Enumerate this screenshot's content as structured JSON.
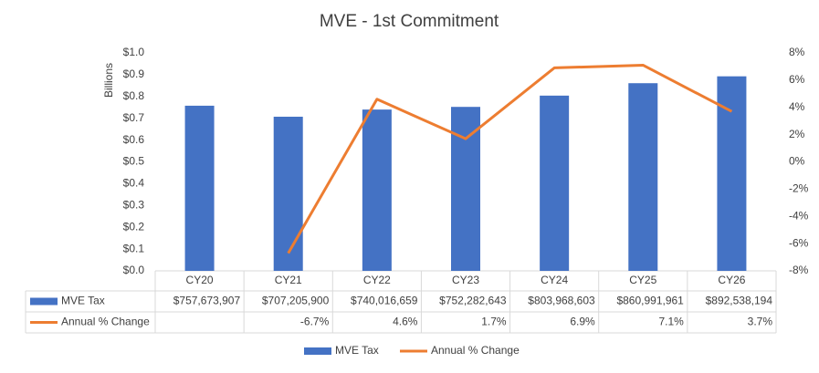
{
  "chart_data": {
    "type": "bar",
    "title": "MVE - 1st Commitment",
    "ylabel": "Billions",
    "categories": [
      "CY20",
      "CY21",
      "CY22",
      "CY23",
      "CY24",
      "CY25",
      "CY26"
    ],
    "series": [
      {
        "name": "MVE Tax",
        "color": "#4472c4",
        "type": "bar",
        "values": [
          0.757673907,
          0.7072059,
          0.740016659,
          0.752282643,
          0.803968603,
          0.860991961,
          0.892538194
        ],
        "value_labels": [
          "$757,673,907",
          "$707,205,900",
          "$740,016,659",
          "$752,282,643",
          "$803,968,603",
          "$860,991,961",
          "$892,538,194"
        ]
      },
      {
        "name": "Annual % Change",
        "color": "#ed7d31",
        "type": "line",
        "axis": "y2",
        "values": [
          null,
          -6.7,
          4.6,
          1.7,
          6.9,
          7.1,
          3.7
        ],
        "value_labels": [
          null,
          "-6.7%",
          "4.6%",
          "1.7%",
          "6.9%",
          "7.1%",
          "3.7%"
        ]
      }
    ],
    "ylim": [
      0,
      1
    ],
    "yticks": [
      {
        "value": 0,
        "label": "$0.0"
      },
      {
        "value": 0.1,
        "label": "$0.1"
      },
      {
        "value": 0.2,
        "label": "$0.2"
      },
      {
        "value": 0.3,
        "label": "$0.3"
      },
      {
        "value": 0.4,
        "label": "$0.4"
      },
      {
        "value": 0.5,
        "label": "$0.5"
      },
      {
        "value": 0.6,
        "label": "$0.6"
      },
      {
        "value": 0.7,
        "label": "$0.7"
      },
      {
        "value": 0.8,
        "label": "$0.8"
      },
      {
        "value": 0.9,
        "label": "$0.9"
      },
      {
        "value": 1,
        "label": "$1.0"
      }
    ],
    "y2lim": [
      -8,
      8
    ],
    "y2ticks": [
      {
        "value": -8,
        "label": "-8%"
      },
      {
        "value": -6,
        "label": "-6%"
      },
      {
        "value": -4,
        "label": "-4%"
      },
      {
        "value": -2,
        "label": "-2%"
      },
      {
        "value": 0,
        "label": "0%"
      },
      {
        "value": 2,
        "label": "2%"
      },
      {
        "value": 4,
        "label": "4%"
      },
      {
        "value": 6,
        "label": "6%"
      },
      {
        "value": 8,
        "label": "8%"
      }
    ],
    "grid": false,
    "legend": "bottom"
  }
}
